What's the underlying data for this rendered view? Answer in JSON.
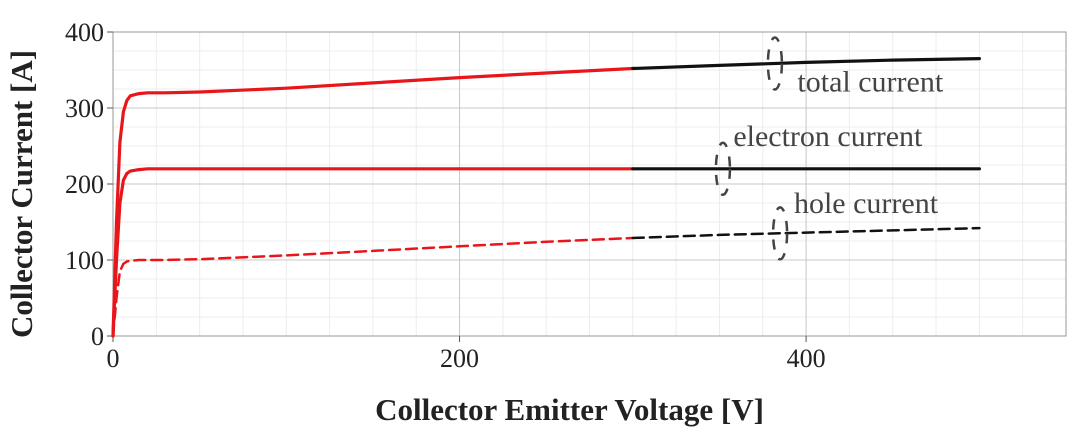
{
  "chart_data": {
    "type": "line",
    "title": "",
    "xlabel": "Collector Emitter Voltage [V]",
    "ylabel": "Collector Current [A]",
    "xlim": [
      0,
      550
    ],
    "ylim": [
      0,
      400
    ],
    "x_ticks": [
      0,
      200,
      400
    ],
    "y_ticks": [
      0,
      100,
      200,
      300,
      400
    ],
    "grid": true,
    "color_split_x": 300,
    "colors": {
      "primary": "#e8161b",
      "secondary": "#111111",
      "grid_major": "#c8c8c8",
      "grid_minor": "#ececec"
    },
    "series": [
      {
        "name": "total current",
        "dashed": false,
        "x": [
          0,
          2,
          4,
          6,
          8,
          10,
          15,
          20,
          30,
          50,
          100,
          150,
          200,
          250,
          300,
          350,
          400,
          450,
          500
        ],
        "y": [
          0,
          150,
          255,
          295,
          310,
          316,
          319,
          320,
          320,
          321,
          326,
          333,
          340,
          346,
          352,
          356,
          360,
          363,
          365
        ]
      },
      {
        "name": "electron current",
        "dashed": false,
        "x": [
          0,
          2,
          4,
          6,
          8,
          10,
          15,
          20,
          30,
          50,
          100,
          200,
          300,
          400,
          500
        ],
        "y": [
          0,
          100,
          175,
          205,
          214,
          217,
          219,
          220,
          220,
          220,
          220,
          220,
          220,
          220,
          220
        ]
      },
      {
        "name": "hole current",
        "dashed": true,
        "x": [
          0,
          2,
          4,
          6,
          8,
          10,
          15,
          20,
          30,
          50,
          100,
          150,
          200,
          250,
          300,
          350,
          400,
          450,
          500
        ],
        "y": [
          0,
          50,
          85,
          95,
          98,
          99,
          100,
          100,
          100,
          101,
          106,
          112,
          118,
          124,
          129,
          133,
          136,
          139,
          142
        ]
      }
    ],
    "annotations": [
      {
        "text": "total current",
        "series": "total current",
        "x": 395,
        "y": 322
      },
      {
        "text": "electron current",
        "series": "electron current",
        "x": 358,
        "y": 250
      },
      {
        "text": "hole current",
        "series": "hole current",
        "x": 393,
        "y": 162
      }
    ]
  }
}
